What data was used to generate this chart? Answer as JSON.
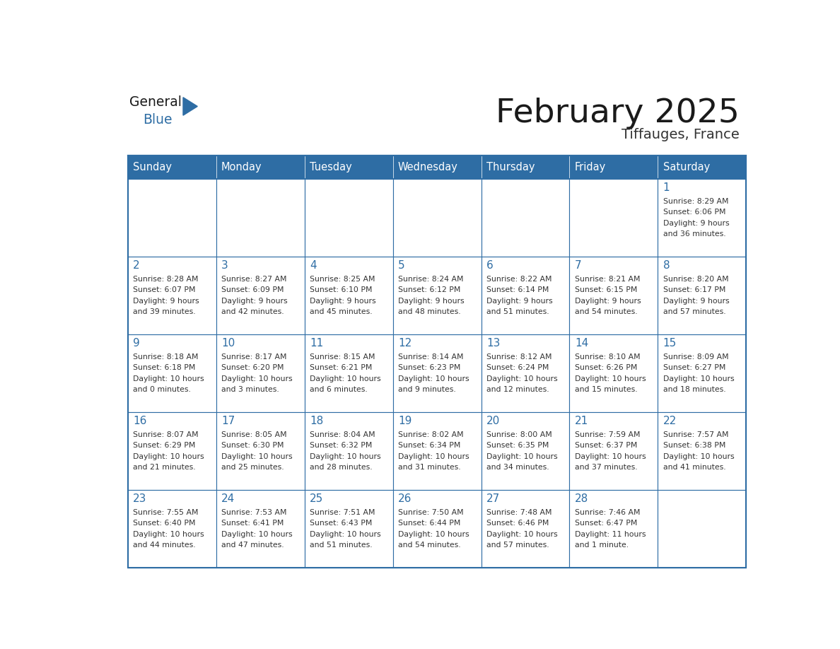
{
  "title": "February 2025",
  "subtitle": "Tiffauges, France",
  "header_bg": "#2E6DA4",
  "header_text": "#FFFFFF",
  "cell_bg": "#FFFFFF",
  "border_color": "#2E6DA4",
  "day_headers": [
    "Sunday",
    "Monday",
    "Tuesday",
    "Wednesday",
    "Thursday",
    "Friday",
    "Saturday"
  ],
  "title_color": "#1a1a1a",
  "subtitle_color": "#333333",
  "day_number_color": "#2E6DA4",
  "text_color": "#333333",
  "logo_general_color": "#1a1a1a",
  "logo_blue_color": "#2E6DA4",
  "weeks": [
    [
      {
        "day": 0,
        "info": ""
      },
      {
        "day": 0,
        "info": ""
      },
      {
        "day": 0,
        "info": ""
      },
      {
        "day": 0,
        "info": ""
      },
      {
        "day": 0,
        "info": ""
      },
      {
        "day": 0,
        "info": ""
      },
      {
        "day": 1,
        "info": "Sunrise: 8:29 AM\nSunset: 6:06 PM\nDaylight: 9 hours\nand 36 minutes."
      }
    ],
    [
      {
        "day": 2,
        "info": "Sunrise: 8:28 AM\nSunset: 6:07 PM\nDaylight: 9 hours\nand 39 minutes."
      },
      {
        "day": 3,
        "info": "Sunrise: 8:27 AM\nSunset: 6:09 PM\nDaylight: 9 hours\nand 42 minutes."
      },
      {
        "day": 4,
        "info": "Sunrise: 8:25 AM\nSunset: 6:10 PM\nDaylight: 9 hours\nand 45 minutes."
      },
      {
        "day": 5,
        "info": "Sunrise: 8:24 AM\nSunset: 6:12 PM\nDaylight: 9 hours\nand 48 minutes."
      },
      {
        "day": 6,
        "info": "Sunrise: 8:22 AM\nSunset: 6:14 PM\nDaylight: 9 hours\nand 51 minutes."
      },
      {
        "day": 7,
        "info": "Sunrise: 8:21 AM\nSunset: 6:15 PM\nDaylight: 9 hours\nand 54 minutes."
      },
      {
        "day": 8,
        "info": "Sunrise: 8:20 AM\nSunset: 6:17 PM\nDaylight: 9 hours\nand 57 minutes."
      }
    ],
    [
      {
        "day": 9,
        "info": "Sunrise: 8:18 AM\nSunset: 6:18 PM\nDaylight: 10 hours\nand 0 minutes."
      },
      {
        "day": 10,
        "info": "Sunrise: 8:17 AM\nSunset: 6:20 PM\nDaylight: 10 hours\nand 3 minutes."
      },
      {
        "day": 11,
        "info": "Sunrise: 8:15 AM\nSunset: 6:21 PM\nDaylight: 10 hours\nand 6 minutes."
      },
      {
        "day": 12,
        "info": "Sunrise: 8:14 AM\nSunset: 6:23 PM\nDaylight: 10 hours\nand 9 minutes."
      },
      {
        "day": 13,
        "info": "Sunrise: 8:12 AM\nSunset: 6:24 PM\nDaylight: 10 hours\nand 12 minutes."
      },
      {
        "day": 14,
        "info": "Sunrise: 8:10 AM\nSunset: 6:26 PM\nDaylight: 10 hours\nand 15 minutes."
      },
      {
        "day": 15,
        "info": "Sunrise: 8:09 AM\nSunset: 6:27 PM\nDaylight: 10 hours\nand 18 minutes."
      }
    ],
    [
      {
        "day": 16,
        "info": "Sunrise: 8:07 AM\nSunset: 6:29 PM\nDaylight: 10 hours\nand 21 minutes."
      },
      {
        "day": 17,
        "info": "Sunrise: 8:05 AM\nSunset: 6:30 PM\nDaylight: 10 hours\nand 25 minutes."
      },
      {
        "day": 18,
        "info": "Sunrise: 8:04 AM\nSunset: 6:32 PM\nDaylight: 10 hours\nand 28 minutes."
      },
      {
        "day": 19,
        "info": "Sunrise: 8:02 AM\nSunset: 6:34 PM\nDaylight: 10 hours\nand 31 minutes."
      },
      {
        "day": 20,
        "info": "Sunrise: 8:00 AM\nSunset: 6:35 PM\nDaylight: 10 hours\nand 34 minutes."
      },
      {
        "day": 21,
        "info": "Sunrise: 7:59 AM\nSunset: 6:37 PM\nDaylight: 10 hours\nand 37 minutes."
      },
      {
        "day": 22,
        "info": "Sunrise: 7:57 AM\nSunset: 6:38 PM\nDaylight: 10 hours\nand 41 minutes."
      }
    ],
    [
      {
        "day": 23,
        "info": "Sunrise: 7:55 AM\nSunset: 6:40 PM\nDaylight: 10 hours\nand 44 minutes."
      },
      {
        "day": 24,
        "info": "Sunrise: 7:53 AM\nSunset: 6:41 PM\nDaylight: 10 hours\nand 47 minutes."
      },
      {
        "day": 25,
        "info": "Sunrise: 7:51 AM\nSunset: 6:43 PM\nDaylight: 10 hours\nand 51 minutes."
      },
      {
        "day": 26,
        "info": "Sunrise: 7:50 AM\nSunset: 6:44 PM\nDaylight: 10 hours\nand 54 minutes."
      },
      {
        "day": 27,
        "info": "Sunrise: 7:48 AM\nSunset: 6:46 PM\nDaylight: 10 hours\nand 57 minutes."
      },
      {
        "day": 28,
        "info": "Sunrise: 7:46 AM\nSunset: 6:47 PM\nDaylight: 11 hours\nand 1 minute."
      },
      {
        "day": 0,
        "info": ""
      }
    ]
  ]
}
